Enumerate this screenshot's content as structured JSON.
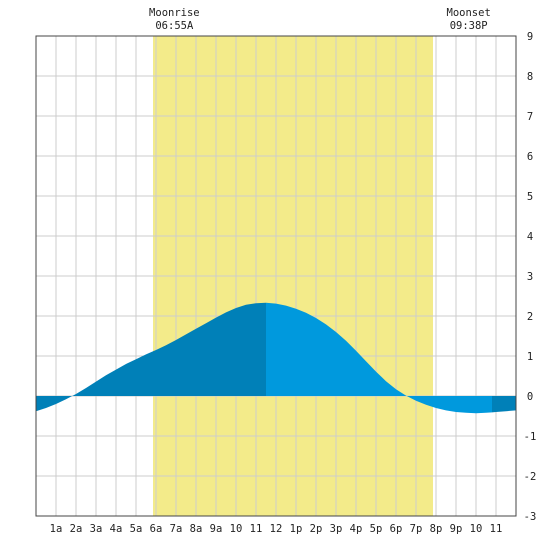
{
  "chart_data": {
    "type": "area",
    "title": "",
    "xlabel": "",
    "ylabel": "",
    "x_ticks": [
      "1a",
      "2a",
      "3a",
      "4a",
      "5a",
      "6a",
      "7a",
      "8a",
      "9a",
      "10",
      "11",
      "12",
      "1p",
      "2p",
      "3p",
      "4p",
      "5p",
      "6p",
      "7p",
      "8p",
      "9p",
      "10",
      "11"
    ],
    "xlim": [
      0,
      24
    ],
    "ylim": [
      -3,
      9
    ],
    "y_ticks": [
      "9",
      "8",
      "7",
      "6",
      "5",
      "4",
      "3",
      "2",
      "1",
      "0",
      "-1",
      "-2",
      "-3"
    ],
    "grid": true,
    "daylight_band": {
      "start_hour": 5.85,
      "end_hour": 19.85,
      "color": "#f3eb8a"
    },
    "moonrise": {
      "label": "Moonrise",
      "time": "06:55A",
      "hour": 6.917
    },
    "moonset": {
      "label": "Moonset",
      "time": "09:38P",
      "hour": 21.633
    },
    "colors": {
      "tide_dark": "#0080b8",
      "tide_light": "#0099dd",
      "grid": "#cccccc",
      "frame": "#444444"
    },
    "tide_phases": [
      {
        "from_hour": 0,
        "to_hour": 11.5,
        "shade": "dark"
      },
      {
        "from_hour": 11.5,
        "to_hour": 22.8,
        "shade": "light"
      },
      {
        "from_hour": 22.8,
        "to_hour": 24,
        "shade": "dark"
      }
    ],
    "tide_series": {
      "hours": [
        0,
        0.5,
        1,
        1.5,
        2,
        2.5,
        3,
        3.5,
        4,
        4.5,
        5,
        5.5,
        6,
        6.5,
        7,
        7.5,
        8,
        8.5,
        9,
        9.5,
        10,
        10.5,
        11,
        11.5,
        12,
        12.5,
        13,
        13.5,
        14,
        14.5,
        15,
        15.5,
        16,
        16.5,
        17,
        17.5,
        18,
        18.5,
        19,
        19.5,
        20,
        20.5,
        21,
        21.5,
        22,
        22.5,
        23,
        23.5,
        24
      ],
      "values": [
        -0.38,
        -0.3,
        -0.2,
        -0.08,
        0.05,
        0.2,
        0.36,
        0.52,
        0.66,
        0.8,
        0.92,
        1.04,
        1.15,
        1.27,
        1.4,
        1.54,
        1.68,
        1.82,
        1.96,
        2.09,
        2.2,
        2.28,
        2.32,
        2.33,
        2.31,
        2.26,
        2.18,
        2.08,
        1.95,
        1.79,
        1.6,
        1.38,
        1.13,
        0.87,
        0.61,
        0.37,
        0.17,
        0.01,
        -0.12,
        -0.22,
        -0.3,
        -0.36,
        -0.4,
        -0.42,
        -0.43,
        -0.42,
        -0.4,
        -0.38,
        -0.36
      ]
    }
  }
}
